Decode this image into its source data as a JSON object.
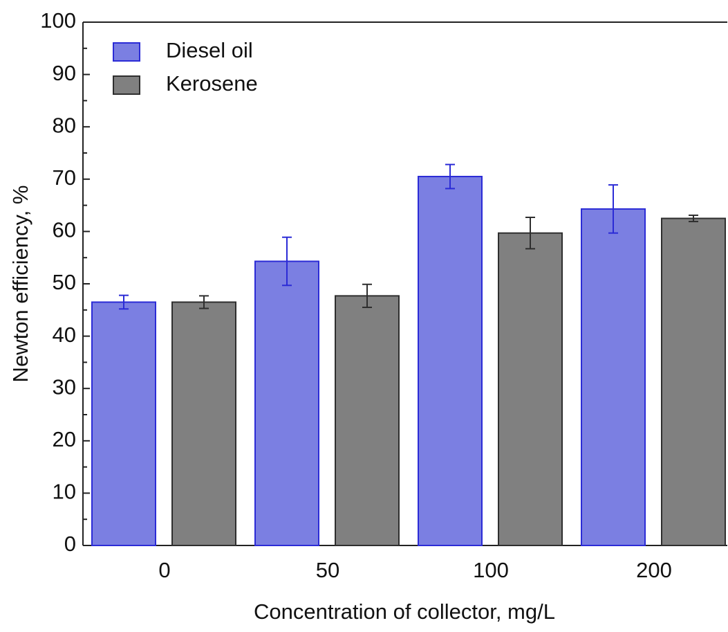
{
  "chart_data": {
    "type": "bar",
    "x_label": "Concentration of collector, mg/L",
    "y_label": "Newton efficiency, %",
    "categories": [
      "0",
      "50",
      "100",
      "200"
    ],
    "series": [
      {
        "name": "Diesel oil",
        "color": "#7b7fe2",
        "edge_color": "#2b2bd6",
        "values": [
          46.5,
          54.3,
          70.5,
          64.3
        ],
        "errors": [
          1.3,
          4.6,
          2.3,
          4.6
        ]
      },
      {
        "name": "Kerosene",
        "color": "#808080",
        "edge_color": "#2e2e2e",
        "values": [
          46.5,
          47.7,
          59.7,
          62.5
        ],
        "errors": [
          1.2,
          2.2,
          3.0,
          0.6
        ]
      }
    ],
    "ylim": [
      0,
      100
    ],
    "yticks": [
      0,
      10,
      20,
      30,
      40,
      50,
      60,
      70,
      80,
      90,
      100
    ],
    "legend": "upper left"
  }
}
